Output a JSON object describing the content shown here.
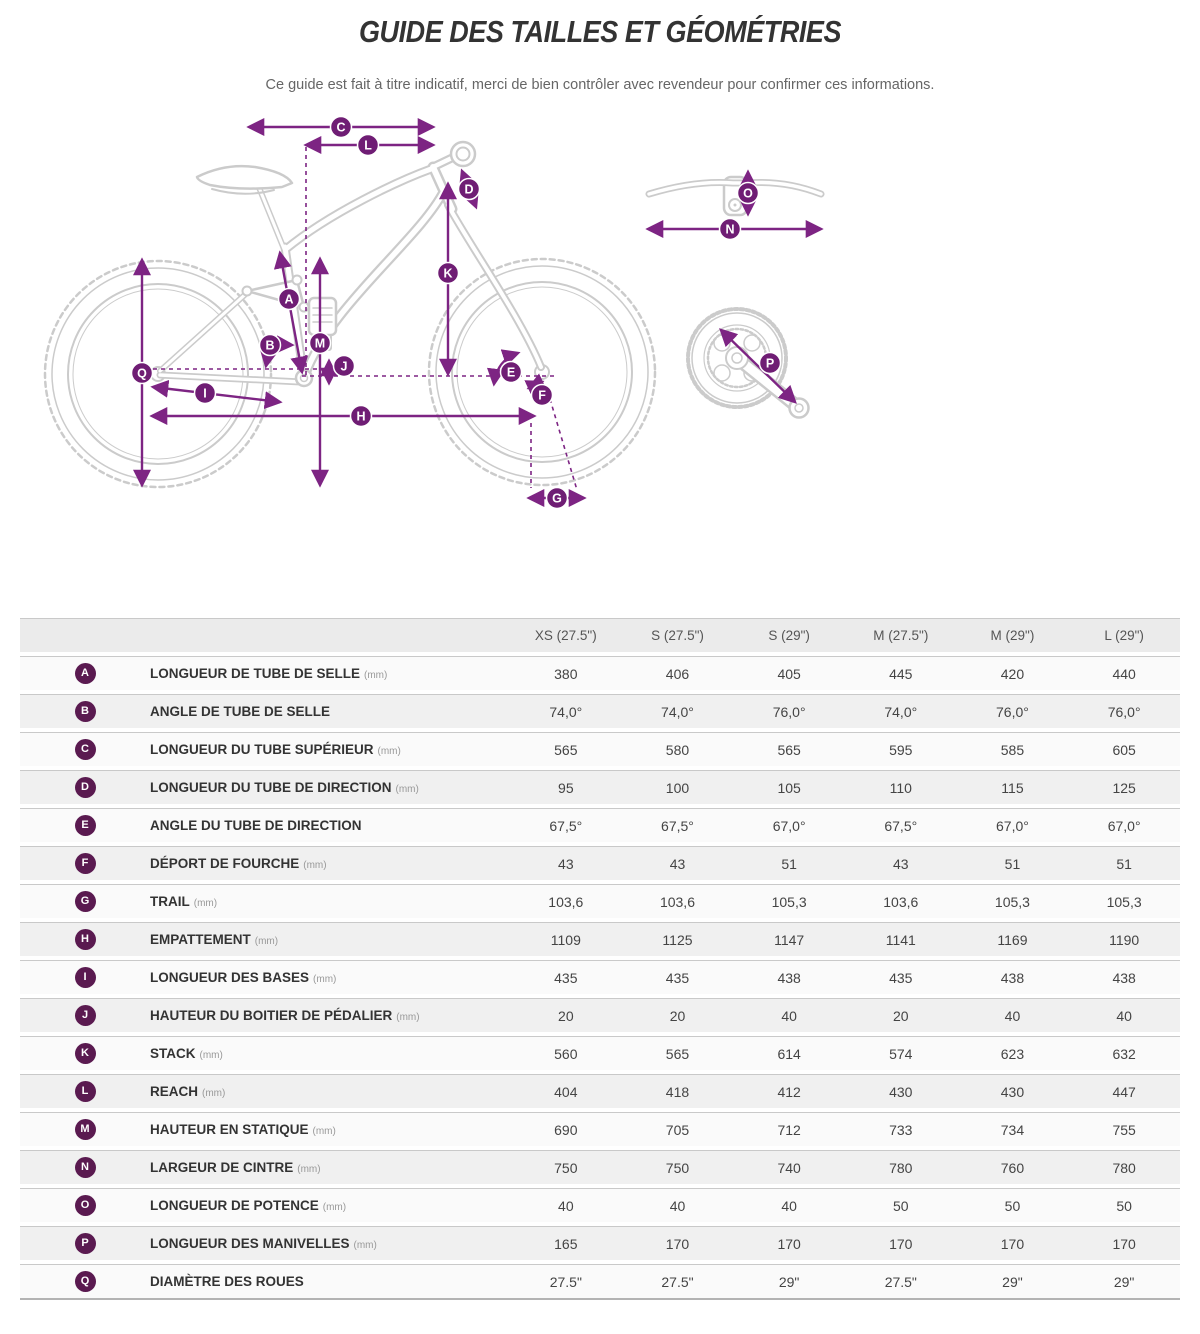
{
  "page": {
    "title": "GUIDE DES TAILLES ET GÉOMÉTRIES",
    "subtitle": "Ce guide est fait à titre indicatif, merci de bien contrôler avec revendeur pour confirmer ces informations."
  },
  "colors": {
    "arrow-purple": "#7d2483",
    "diagram-badge": "#6f1d74",
    "table-badge": "#5a1a50",
    "row-odd": "#fafafa",
    "row-even": "#f0f0f0",
    "header-bg": "#ebebeb"
  },
  "diagram": {
    "badges": [
      "A",
      "B",
      "C",
      "D",
      "E",
      "F",
      "G",
      "H",
      "I",
      "J",
      "K",
      "L",
      "M",
      "N",
      "O",
      "P",
      "Q"
    ]
  },
  "table": {
    "columns": [
      "XS (27.5\")",
      "S (27.5\")",
      "S (29\")",
      "M (27.5\")",
      "M (29\")",
      "L (29\")"
    ],
    "rows": [
      {
        "letter": "A",
        "label": "LONGUEUR DE TUBE DE SELLE",
        "unit": "(mm)",
        "values": [
          "380",
          "406",
          "405",
          "445",
          "420",
          "440"
        ]
      },
      {
        "letter": "B",
        "label": "ANGLE DE TUBE DE SELLE",
        "unit": "",
        "values": [
          "74,0°",
          "74,0°",
          "76,0°",
          "74,0°",
          "76,0°",
          "76,0°"
        ]
      },
      {
        "letter": "C",
        "label": "LONGUEUR DU TUBE SUPÉRIEUR",
        "unit": "(mm)",
        "values": [
          "565",
          "580",
          "565",
          "595",
          "585",
          "605"
        ]
      },
      {
        "letter": "D",
        "label": "LONGUEUR DU TUBE DE DIRECTION",
        "unit": "(mm)",
        "values": [
          "95",
          "100",
          "105",
          "110",
          "115",
          "125"
        ]
      },
      {
        "letter": "E",
        "label": "ANGLE DU TUBE DE DIRECTION",
        "unit": "",
        "values": [
          "67,5°",
          "67,5°",
          "67,0°",
          "67,5°",
          "67,0°",
          "67,0°"
        ]
      },
      {
        "letter": "F",
        "label": "DÉPORT DE FOURCHE",
        "unit": "(mm)",
        "values": [
          "43",
          "43",
          "51",
          "43",
          "51",
          "51"
        ]
      },
      {
        "letter": "G",
        "label": "TRAIL",
        "unit": "(mm)",
        "values": [
          "103,6",
          "103,6",
          "105,3",
          "103,6",
          "105,3",
          "105,3"
        ]
      },
      {
        "letter": "H",
        "label": "EMPATTEMENT",
        "unit": "(mm)",
        "values": [
          "1109",
          "1125",
          "1147",
          "1141",
          "1169",
          "1190"
        ]
      },
      {
        "letter": "I",
        "label": "LONGUEUR DES BASES",
        "unit": "(mm)",
        "values": [
          "435",
          "435",
          "438",
          "435",
          "438",
          "438"
        ]
      },
      {
        "letter": "J",
        "label": "HAUTEUR DU BOITIER DE PÉDALIER",
        "unit": "(mm)",
        "values": [
          "20",
          "20",
          "40",
          "20",
          "40",
          "40"
        ]
      },
      {
        "letter": "K",
        "label": "STACK",
        "unit": "(mm)",
        "values": [
          "560",
          "565",
          "614",
          "574",
          "623",
          "632"
        ]
      },
      {
        "letter": "L",
        "label": "REACH",
        "unit": "(mm)",
        "values": [
          "404",
          "418",
          "412",
          "430",
          "430",
          "447"
        ]
      },
      {
        "letter": "M",
        "label": "HAUTEUR EN STATIQUE",
        "unit": "(mm)",
        "values": [
          "690",
          "705",
          "712",
          "733",
          "734",
          "755"
        ]
      },
      {
        "letter": "N",
        "label": "LARGEUR DE CINTRE",
        "unit": "(mm)",
        "values": [
          "750",
          "750",
          "740",
          "780",
          "760",
          "780"
        ]
      },
      {
        "letter": "O",
        "label": "LONGUEUR DE POTENCE",
        "unit": "(mm)",
        "values": [
          "40",
          "40",
          "40",
          "50",
          "50",
          "50"
        ]
      },
      {
        "letter": "P",
        "label": "LONGUEUR DES MANIVELLES",
        "unit": "(mm)",
        "values": [
          "165",
          "170",
          "170",
          "170",
          "170",
          "170"
        ]
      },
      {
        "letter": "Q",
        "label": "DIAMÈTRE DES ROUES",
        "unit": "",
        "values": [
          "27.5\"",
          "27.5\"",
          "29\"",
          "27.5\"",
          "29\"",
          "29\""
        ]
      }
    ]
  }
}
